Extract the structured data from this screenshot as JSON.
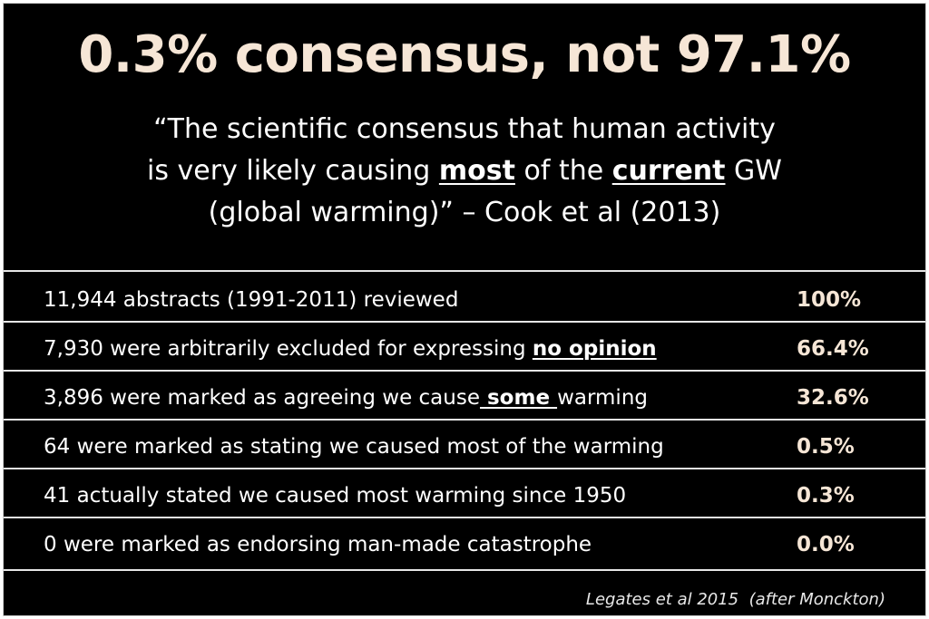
{
  "title": "0.3% consensus, not 97.1%",
  "quote": {
    "line1": "“The scientific consensus that human activity",
    "line2_pre": "is very likely causing ",
    "line2_bold1": "most",
    "line2_mid": " of the ",
    "line2_bold2": "current",
    "line2_post": " GW",
    "line3": "(global warming)” – Cook et al (2013)"
  },
  "rows": [
    {
      "pre": "11,944 abstracts (1991-2011) reviewed",
      "emph": "",
      "post": "",
      "pct": "100%"
    },
    {
      "pre": "7,930 were arbitrarily excluded for expressing ",
      "emph": "no opinion",
      "post": "",
      "pct": "66.4%"
    },
    {
      "pre": "3,896 were marked as agreeing we cause",
      "emph": " some ",
      "post": "warming",
      "pct": "32.6%"
    },
    {
      "pre": "64 were marked as stating we caused most of the warming",
      "emph": "",
      "post": "",
      "pct": "0.5%"
    },
    {
      "pre": "41 actually stated we caused most warming since 1950",
      "emph": "",
      "post": "",
      "pct": "0.3%"
    },
    {
      "pre": "0 were marked as endorsing man-made catastrophe",
      "emph": "",
      "post": "",
      "pct": "0.0%"
    }
  ],
  "source": "Legates et al 2015  (after Monckton)",
  "colors": {
    "background": "#000000",
    "title": "#f6e6d6",
    "text": "#ffffff",
    "rules": "#e6e6e6"
  }
}
